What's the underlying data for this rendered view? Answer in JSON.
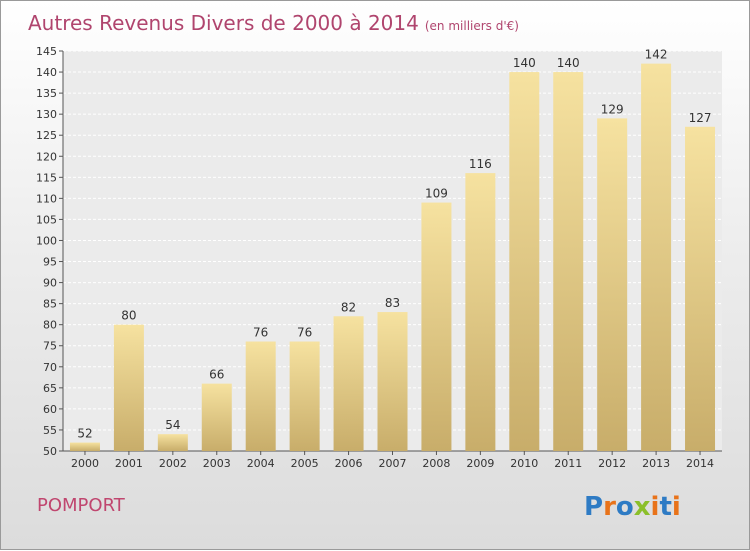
{
  "header": {
    "title": "Autres Revenus Divers de 2000 à 2014",
    "subtitle": "(en milliers d'€)"
  },
  "footer": {
    "town": "POMPORT",
    "logo_text": "Proxiti",
    "logo_colors": [
      "#2e7bc4",
      "#e8731a",
      "#2e7bc4",
      "#8bbf2a",
      "#e8731a",
      "#2e7bc4",
      "#e8731a"
    ]
  },
  "colors": {
    "title": "#b0456e",
    "bar_light": "#f6e2a0",
    "bar_dark": "#c8ad6a"
  },
  "chart_data": {
    "type": "bar",
    "title": "Autres Revenus Divers de 2000 à 2014",
    "subtitle": "(en milliers d'€)",
    "categories": [
      "2000",
      "2001",
      "2002",
      "2003",
      "2004",
      "2005",
      "2006",
      "2007",
      "2008",
      "2009",
      "2010",
      "2011",
      "2012",
      "2013",
      "2014"
    ],
    "values": [
      52,
      80,
      54,
      66,
      76,
      76,
      82,
      83,
      109,
      116,
      140,
      140,
      129,
      142,
      127
    ],
    "ylim": [
      50,
      145
    ],
    "yticks": [
      50,
      55,
      60,
      65,
      70,
      75,
      80,
      85,
      90,
      95,
      100,
      105,
      110,
      115,
      120,
      125,
      130,
      135,
      140,
      145
    ],
    "grid": true,
    "legend": "none"
  }
}
